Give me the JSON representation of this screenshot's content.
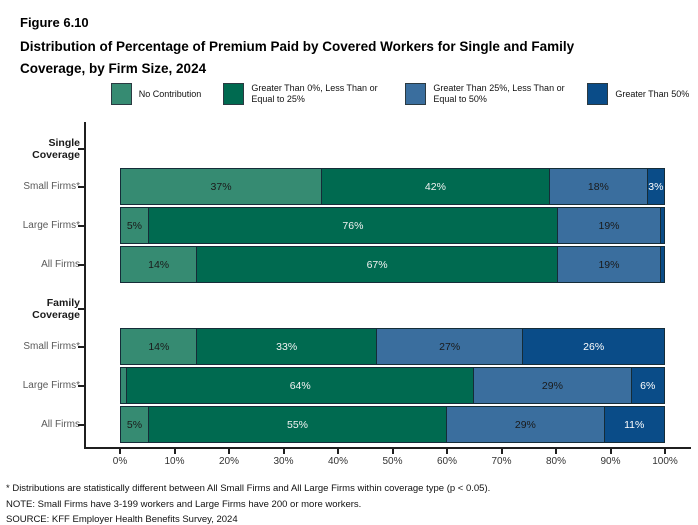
{
  "header": {
    "figure_label": "Figure 6.10",
    "title": "Distribution of Percentage of Premium Paid by Covered Workers for Single and Family Coverage, by Firm Size, 2024"
  },
  "chart_data": {
    "type": "bar",
    "stacked": true,
    "orientation": "horizontal",
    "title": "Distribution of Percentage of Premium Paid by Covered Workers for Single and Family Coverage, by Firm Size, 2024",
    "xlim": [
      0,
      100
    ],
    "x_ticks": [
      "0%",
      "10%",
      "20%",
      "30%",
      "40%",
      "50%",
      "60%",
      "70%",
      "80%",
      "90%",
      "100%"
    ],
    "grid": false,
    "legend_position": "top",
    "legend": [
      {
        "label": "No Contribution",
        "color": "#368b72",
        "label_color": "#1a1a1a"
      },
      {
        "label": "Greater Than 0%, Less Than or Equal to 25%",
        "color": "#006a50",
        "label_color": "#f2f2f2"
      },
      {
        "label": "Greater Than 25%, Less Than or Equal to 50%",
        "color": "#3a6e9e",
        "label_color": "#1a1a1a"
      },
      {
        "label": "Greater Than 50%",
        "color": "#0a4c88",
        "label_color": "#ffffff"
      }
    ],
    "groups": [
      {
        "label": "Single Coverage",
        "rows": [
          {
            "label": "Small Firms*",
            "values": [
              37,
              42,
              18,
              3
            ],
            "labels": [
              "37%",
              "42%",
              "18%",
              "3%"
            ]
          },
          {
            "label": "Large Firms*",
            "values": [
              5,
              76,
              19,
              0.6
            ],
            "labels": [
              "5%",
              "76%",
              "19%",
              ""
            ]
          },
          {
            "label": "All Firms",
            "values": [
              14,
              67,
              19,
              0.6
            ],
            "labels": [
              "14%",
              "67%",
              "19%",
              ""
            ]
          }
        ]
      },
      {
        "label": "Family Coverage",
        "rows": [
          {
            "label": "Small Firms*",
            "values": [
              14,
              33,
              27,
              26
            ],
            "labels": [
              "14%",
              "33%",
              "27%",
              "26%"
            ]
          },
          {
            "label": "Large Firms*",
            "values": [
              1,
              64,
              29,
              6
            ],
            "labels": [
              "",
              "64%",
              "29%",
              "6%"
            ]
          },
          {
            "label": "All Firms",
            "values": [
              5,
              55,
              29,
              11
            ],
            "labels": [
              "5%",
              "55%",
              "29%",
              "11%"
            ]
          }
        ]
      }
    ]
  },
  "footnotes": [
    "* Distributions are statistically different between All Small Firms and All Large Firms within coverage type (p < 0.05).",
    "NOTE: Small Firms have 3-199 workers and Large Firms have 200 or more workers.",
    "SOURCE: KFF Employer Health Benefits Survey, 2024"
  ]
}
